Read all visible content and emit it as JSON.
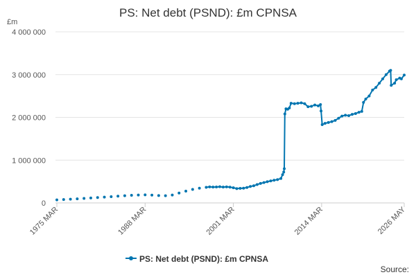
{
  "chart_data": {
    "type": "line",
    "title": "PS: Net debt (PSND): £m CPNSA",
    "y_unit": "£m",
    "source": "Source:",
    "x": [
      "1975 MAR",
      "1975 SEP",
      "1976 MAR",
      "1976 SEP",
      "1977 MAR",
      "1977 SEP",
      "1978 MAR",
      "1978 SEP",
      "1979 MAR",
      "1979 SEP",
      "1980 MAR",
      "1980 SEP",
      "1981 MAR",
      "1981 SEP",
      "1982 MAR",
      "1982 SEP",
      "1983 MAR",
      "1983 SEP",
      "1984 MAR",
      "1984 SEP",
      "1985 MAR",
      "1985 SEP",
      "1986 MAR",
      "1986 SEP",
      "1987 MAR",
      "1987 SEP",
      "1988 MAR",
      "1988 SEP",
      "1989 MAR",
      "1989 SEP",
      "1990 MAR",
      "1990 SEP",
      "1991 MAR",
      "1991 SEP",
      "1992 MAR",
      "1992 SEP",
      "1993 MAR",
      "1993 SEP",
      "1994 MAR",
      "1994 SEP",
      "1995 MAR",
      "1995 SEP",
      "1996 MAR",
      "1996 SEP",
      "1997 MAR",
      "1997 SEP",
      "1998 MAR",
      "1998 SEP",
      "1999 MAR",
      "1999 SEP",
      "2000 MAR",
      "2000 SEP",
      "2001 MAR",
      "2001 SEP",
      "2002 MAR",
      "2002 SEP",
      "2003 MAR",
      "2003 SEP",
      "2004 MAR",
      "2004 SEP",
      "2005 MAR",
      "2005 SEP",
      "2006 MAR",
      "2006 SEP",
      "2007 MAR",
      "2007 SEP",
      "2008 MAR",
      "2008 JUN",
      "2008 AUG",
      "2008 SEP",
      "2008 OCT",
      "2008 DEC",
      "2009 MAR",
      "2009 JUN",
      "2009 SEP",
      "2010 MAR",
      "2010 SEP",
      "2011 MAR",
      "2011 SEP",
      "2012 MAR",
      "2012 SEP",
      "2013 MAR",
      "2013 SEP",
      "2014 JAN",
      "2014 FEB",
      "2014 APR",
      "2014 SEP",
      "2015 MAR",
      "2015 SEP",
      "2016 MAR",
      "2016 SEP",
      "2017 MAR",
      "2017 SEP",
      "2018 MAR",
      "2018 SEP",
      "2019 MAR",
      "2019 SEP",
      "2020 FEB",
      "2020 MAY",
      "2020 SEP",
      "2021 MAR",
      "2021 SEP",
      "2022 MAR",
      "2022 SEP",
      "2023 MAR",
      "2023 SEP",
      "2024 MAR",
      "2024 MAY",
      "2024 JUN",
      "2024 DEC",
      "2025 MAR",
      "2025 SEP",
      "2025 DEC",
      "2026 MAY"
    ],
    "series": [
      {
        "name": "PS: Net debt (PSND): £m CPNSA",
        "color": "#0075b0",
        "values": [
          70000,
          null,
          78000,
          null,
          88000,
          null,
          95000,
          null,
          105000,
          null,
          115000,
          null,
          125000,
          null,
          135000,
          null,
          145000,
          null,
          158000,
          null,
          168000,
          null,
          178000,
          null,
          185000,
          null,
          188000,
          null,
          182000,
          null,
          172000,
          null,
          168000,
          null,
          185000,
          null,
          230000,
          null,
          275000,
          null,
          315000,
          null,
          345000,
          null,
          365000,
          375000,
          370000,
          372000,
          378000,
          370000,
          375000,
          368000,
          355000,
          335000,
          340000,
          345000,
          360000,
          385000,
          400000,
          430000,
          455000,
          475000,
          495000,
          515000,
          530000,
          545000,
          570000,
          660000,
          720000,
          800000,
          2080000,
          2200000,
          2190000,
          2220000,
          2330000,
          2320000,
          2330000,
          2340000,
          2320000,
          2250000,
          2260000,
          2290000,
          2270000,
          2300000,
          2150000,
          1830000,
          1860000,
          1880000,
          1900000,
          1930000,
          1980000,
          2030000,
          2050000,
          2040000,
          2070000,
          2090000,
          2120000,
          2140000,
          2350000,
          2430000,
          2500000,
          2640000,
          2700000,
          2800000,
          2900000,
          3000000,
          3080000,
          3100000,
          2750000,
          2800000,
          2880000,
          2920000,
          2900000,
          2990000
        ]
      }
    ],
    "xlim": [
      "1975 MAR",
      "2026 MAY"
    ],
    "xticks": [
      "1975 MAR",
      "1988 MAR",
      "2001 MAR",
      "2014 MAR",
      "2026 MAY"
    ],
    "ylim": [
      0,
      4000000
    ],
    "yticks": [
      0,
      {
        "value": 1000000,
        "label": "1 000 000"
      },
      {
        "value": 2000000,
        "label": "2 000 000"
      },
      {
        "value": 3000000,
        "label": "3 000 000"
      },
      {
        "value": 4000000,
        "label": "4 000 000"
      }
    ],
    "grid": true,
    "legend": "bottom"
  }
}
